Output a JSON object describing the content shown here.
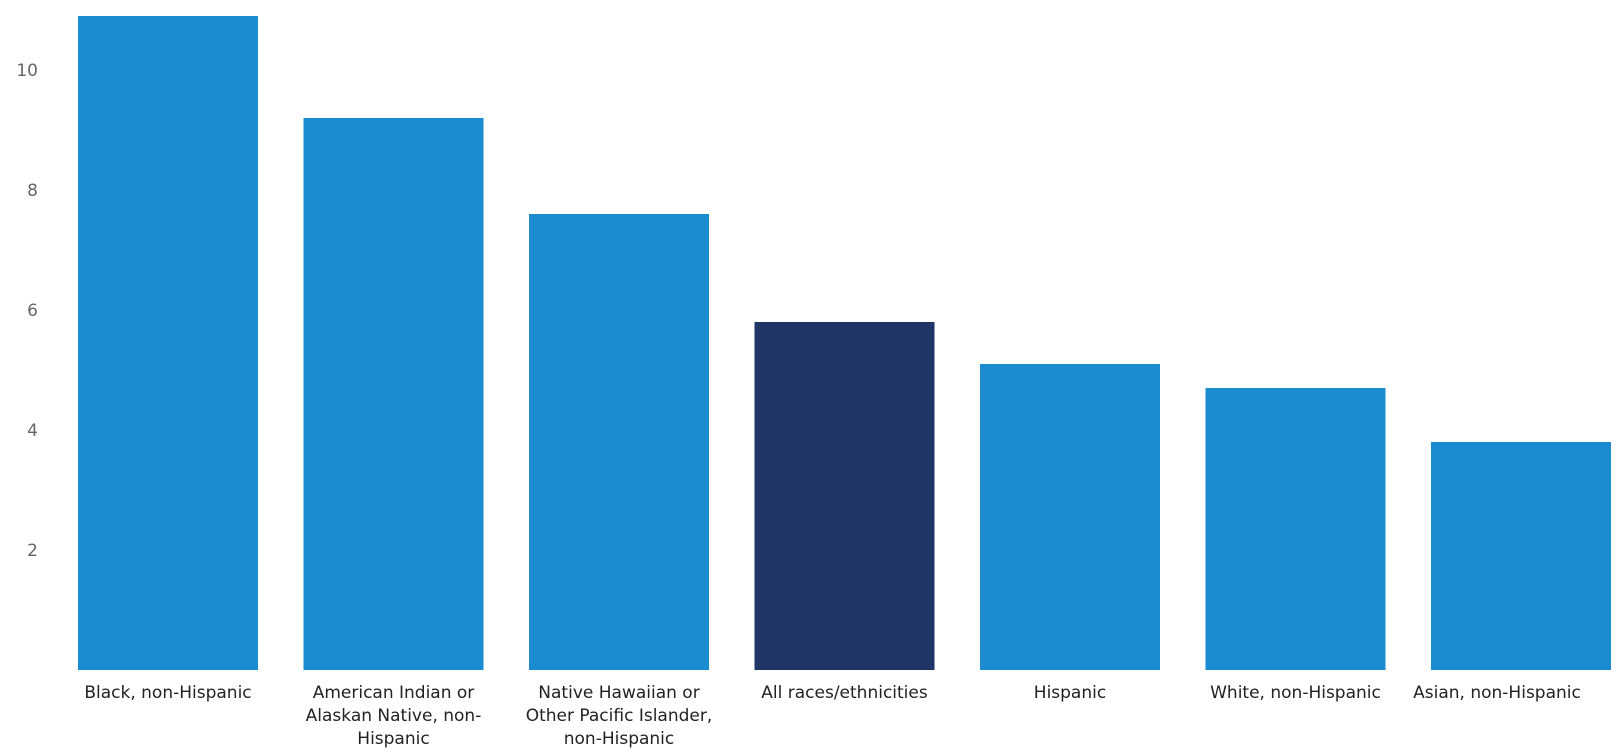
{
  "chart_data": {
    "type": "bar",
    "categories": [
      "Black, non-Hispanic",
      "American Indian or\nAlaskan Native, non-\nHispanic",
      "Native Hawaiian or\nOther Pacific Islander,\nnon-Hispanic",
      "All races/ethnicities",
      "Hispanic",
      "White, non-Hispanic",
      "Asian, non-Hispanic"
    ],
    "values": [
      10.9,
      9.2,
      7.6,
      5.8,
      5.1,
      4.7,
      3.8
    ],
    "title": "",
    "xlabel": "",
    "ylabel": "",
    "ylim": [
      0,
      11
    ],
    "yticks": [
      2,
      4,
      6,
      8,
      10
    ],
    "grid": false,
    "colors": {
      "default": "#1B8CD0",
      "highlight": "#1F3566"
    },
    "highlight_category": "All races/ethnicities"
  }
}
